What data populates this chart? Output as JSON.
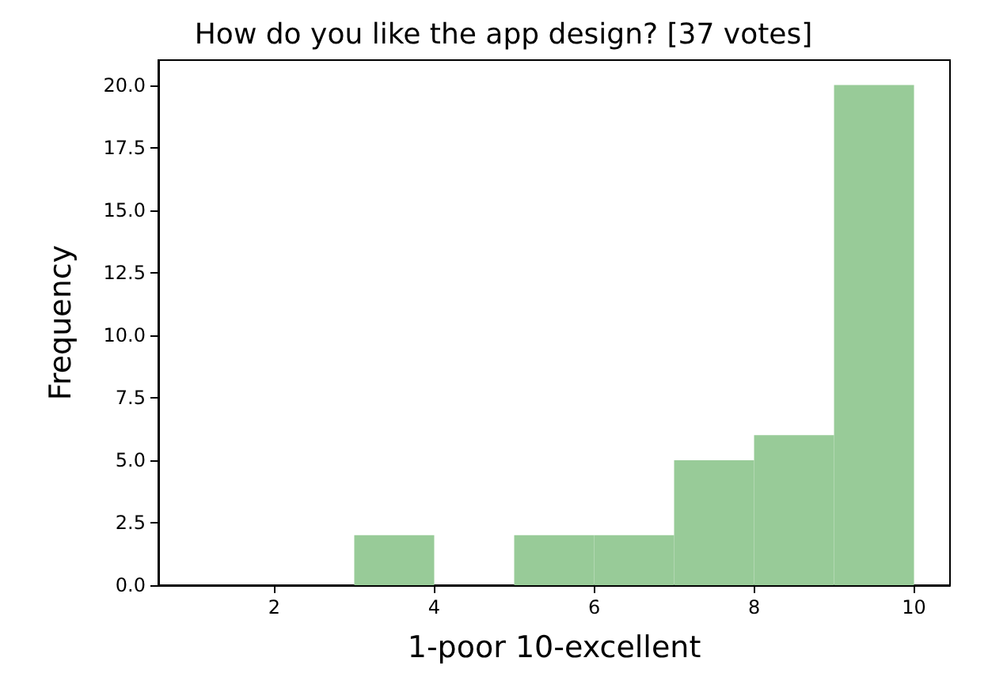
{
  "chart_data": {
    "type": "histogram",
    "title": "How do you like the app design? [37 votes]",
    "xlabel": "1-poor 10-excellent",
    "ylabel": "Frequency",
    "bins": [
      1,
      2,
      3,
      4,
      5,
      6,
      7,
      8,
      9,
      10
    ],
    "values": [
      0,
      0,
      2,
      0,
      2,
      2,
      5,
      6,
      20
    ],
    "color": "#98cb98",
    "xlim": [
      0.55,
      10.45
    ],
    "xticks": [
      2,
      4,
      6,
      8,
      10
    ],
    "ylim": [
      0,
      21
    ],
    "yticks": [
      {
        "value": 0,
        "label": "0.0"
      },
      {
        "value": 2.5,
        "label": "2.5"
      },
      {
        "value": 5,
        "label": "5.0"
      },
      {
        "value": 7.5,
        "label": "7.5"
      },
      {
        "value": 10,
        "label": "10.0"
      },
      {
        "value": 12.5,
        "label": "12.5"
      },
      {
        "value": 15,
        "label": "15.0"
      },
      {
        "value": 17.5,
        "label": "17.5"
      },
      {
        "value": 20,
        "label": "20.0"
      }
    ],
    "grid": false
  }
}
